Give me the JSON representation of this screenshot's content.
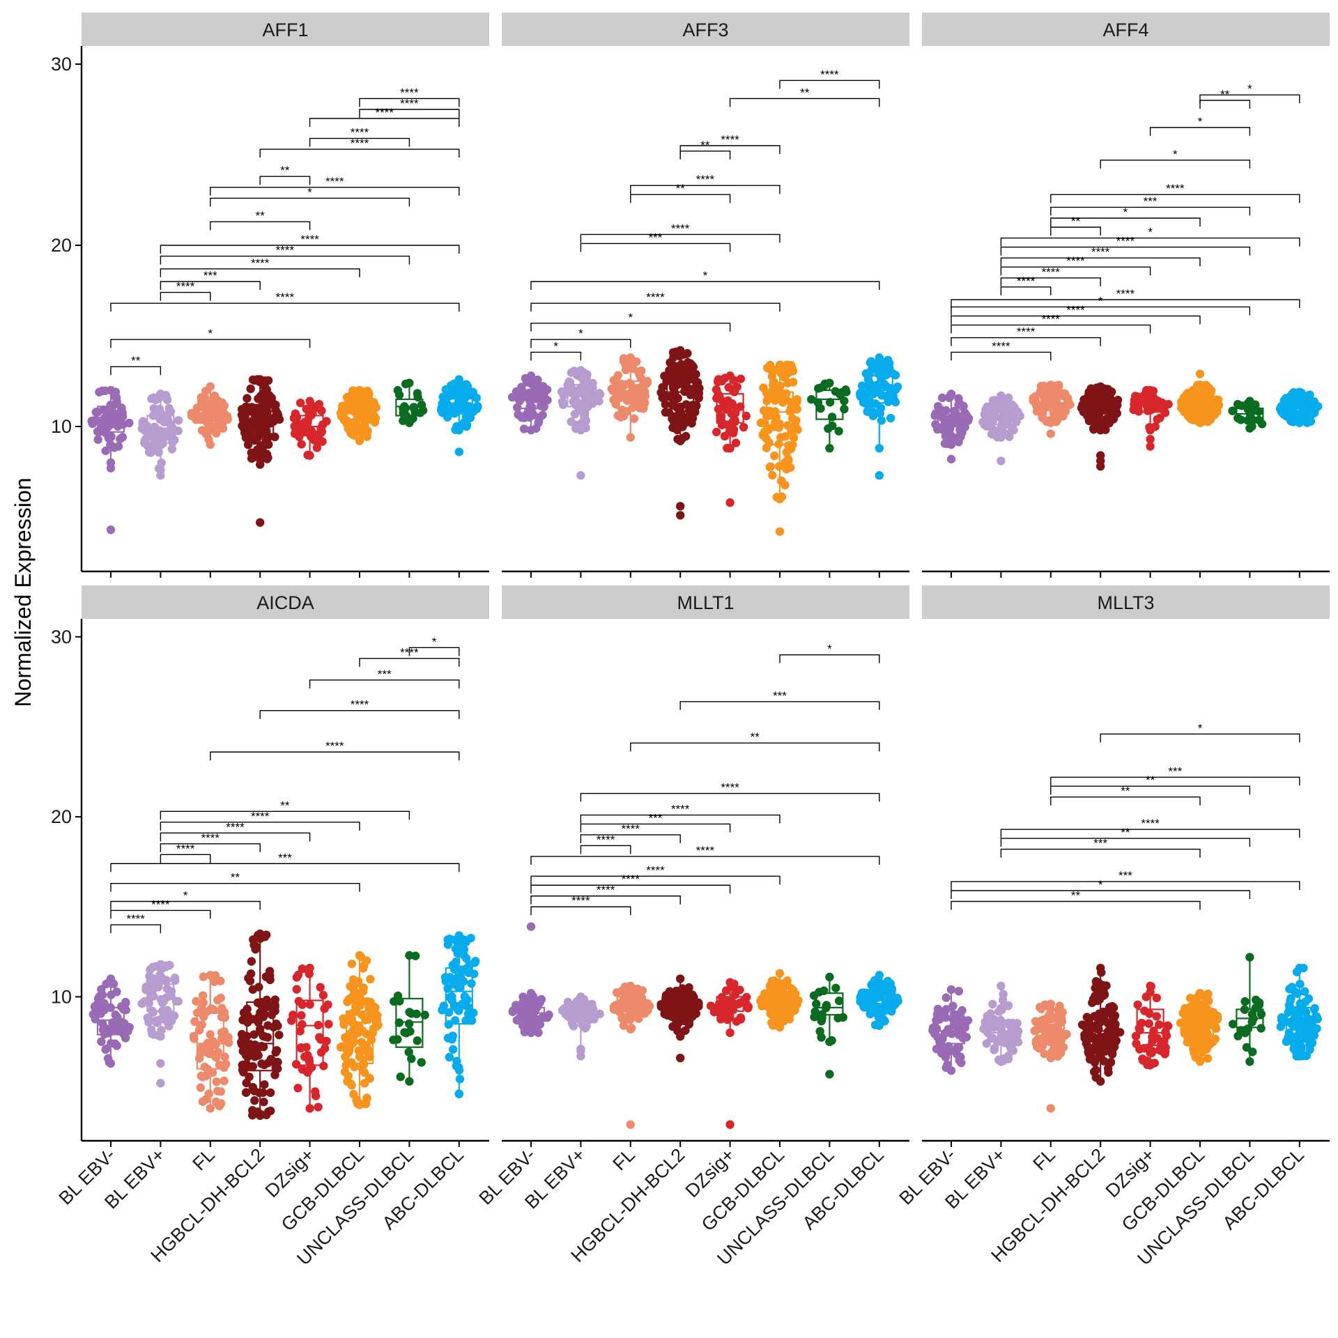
{
  "chart_data": {
    "type": "box-beeswarm",
    "ylabel": "Normalized Expression",
    "xlabel": "",
    "ylim": [
      2,
      31
    ],
    "yticks": [
      10,
      20,
      30
    ],
    "groups": [
      "BL EBV-",
      "BL EBV+",
      "FL",
      "HGBCL-DH-BCL2",
      "DZsig+",
      "GCB-DLBCL",
      "UNCLASS-DLBCL",
      "ABC-DLBCL"
    ],
    "group_colors": [
      "#9a6bb5",
      "#b69ccf",
      "#ee8a6c",
      "#7e1416",
      "#d7272d",
      "#f7941e",
      "#0b6b20",
      "#08acec"
    ],
    "group_counts": [
      60,
      70,
      70,
      120,
      45,
      110,
      20,
      80
    ],
    "panels": [
      {
        "name": "AFF1",
        "box": [
          [
            9.7,
            10.5,
            11.1,
            12.0,
            8.0
          ],
          [
            9.1,
            9.9,
            10.6,
            11.8,
            7.6
          ],
          [
            10.2,
            10.6,
            11.0,
            12.2,
            9.0
          ],
          [
            9.6,
            10.4,
            11.2,
            12.6,
            8.2
          ],
          [
            9.5,
            10.0,
            10.6,
            11.4,
            8.4
          ],
          [
            10.3,
            10.8,
            11.2,
            12.0,
            9.2
          ],
          [
            10.6,
            11.1,
            11.5,
            12.4,
            10.2
          ],
          [
            10.7,
            11.2,
            11.7,
            12.6,
            9.8
          ]
        ],
        "outliers": [
          [
            4.3,
            7.7
          ],
          [
            7.3
          ],
          [],
          [
            4.7,
            7.9
          ],
          [],
          [],
          [],
          [
            8.6
          ]
        ],
        "comparisons": [
          {
            "g1": 0,
            "g2": 1,
            "y": 13.3,
            "label": "**"
          },
          {
            "g1": 0,
            "g2": 4,
            "y": 14.8,
            "label": "*"
          },
          {
            "g1": 0,
            "g2": 7,
            "y": 16.8,
            "label": "****"
          },
          {
            "g1": 1,
            "g2": 2,
            "y": 17.4,
            "label": "****"
          },
          {
            "g1": 1,
            "g2": 3,
            "y": 18.0,
            "label": "***"
          },
          {
            "g1": 1,
            "g2": 5,
            "y": 18.7,
            "label": "****"
          },
          {
            "g1": 1,
            "g2": 6,
            "y": 19.4,
            "label": "****"
          },
          {
            "g1": 1,
            "g2": 7,
            "y": 20.0,
            "label": "****"
          },
          {
            "g1": 2,
            "g2": 4,
            "y": 21.3,
            "label": "**"
          },
          {
            "g1": 2,
            "g2": 6,
            "y": 22.6,
            "label": "*"
          },
          {
            "g1": 2,
            "g2": 7,
            "y": 23.2,
            "label": "****"
          },
          {
            "g1": 3,
            "g2": 4,
            "y": 23.8,
            "label": "**"
          },
          {
            "g1": 3,
            "g2": 7,
            "y": 25.3,
            "label": "****"
          },
          {
            "g1": 4,
            "g2": 6,
            "y": 25.9,
            "label": "****"
          },
          {
            "g1": 4,
            "g2": 7,
            "y": 27.0,
            "label": "****"
          },
          {
            "g1": 5,
            "g2": 7,
            "y": 27.5,
            "label": "****"
          },
          {
            "g1": 5,
            "g2": 7,
            "y": 28.1,
            "label": "****"
          }
        ]
      },
      {
        "name": "AFF3",
        "box": [
          [
            11.0,
            11.5,
            12.0,
            12.8,
            9.8
          ],
          [
            11.1,
            11.7,
            12.3,
            13.1,
            9.8
          ],
          [
            11.0,
            11.8,
            12.5,
            13.8,
            9.4
          ],
          [
            11.1,
            11.9,
            12.8,
            14.2,
            9.2
          ],
          [
            10.2,
            11.0,
            11.8,
            12.8,
            8.8
          ],
          [
            9.0,
            10.8,
            11.9,
            13.4,
            6.0
          ],
          [
            10.4,
            11.5,
            12.0,
            12.4,
            8.8
          ],
          [
            11.3,
            12.0,
            12.8,
            13.8,
            8.8
          ]
        ],
        "outliers": [
          [],
          [
            7.3
          ],
          [],
          [
            5.1,
            5.6
          ],
          [
            5.8
          ],
          [
            4.2
          ],
          [],
          [
            7.3
          ]
        ],
        "comparisons": [
          {
            "g1": 0,
            "g2": 1,
            "y": 14.1,
            "label": "*"
          },
          {
            "g1": 0,
            "g2": 2,
            "y": 14.8,
            "label": "*"
          },
          {
            "g1": 0,
            "g2": 4,
            "y": 15.7,
            "label": "*"
          },
          {
            "g1": 0,
            "g2": 5,
            "y": 16.8,
            "label": "****"
          },
          {
            "g1": 0,
            "g2": 7,
            "y": 18.0,
            "label": "*"
          },
          {
            "g1": 1,
            "g2": 4,
            "y": 20.1,
            "label": "***"
          },
          {
            "g1": 1,
            "g2": 5,
            "y": 20.6,
            "label": "****"
          },
          {
            "g1": 2,
            "g2": 4,
            "y": 22.8,
            "label": "**"
          },
          {
            "g1": 2,
            "g2": 5,
            "y": 23.3,
            "label": "****"
          },
          {
            "g1": 3,
            "g2": 4,
            "y": 25.2,
            "label": "**"
          },
          {
            "g1": 3,
            "g2": 5,
            "y": 25.5,
            "label": "****"
          },
          {
            "g1": 4,
            "g2": 7,
            "y": 28.1,
            "label": "**"
          },
          {
            "g1": 5,
            "g2": 7,
            "y": 29.1,
            "label": "****"
          }
        ]
      },
      {
        "name": "AFF4",
        "box": [
          [
            10.0,
            10.5,
            10.9,
            11.8,
            9.0
          ],
          [
            10.1,
            10.5,
            10.9,
            11.7,
            9.4
          ],
          [
            10.9,
            11.3,
            11.7,
            12.3,
            10.2
          ],
          [
            10.7,
            11.1,
            11.5,
            12.2,
            9.8
          ],
          [
            10.8,
            11.2,
            11.5,
            12.0,
            9.8
          ],
          [
            10.8,
            11.2,
            11.6,
            12.3,
            10.2
          ],
          [
            10.4,
            10.7,
            11.0,
            11.4,
            9.9
          ],
          [
            10.6,
            11.0,
            11.3,
            11.9,
            10.2
          ]
        ],
        "outliers": [
          [
            8.2
          ],
          [
            8.1
          ],
          [
            9.6
          ],
          [
            7.8,
            8.1,
            8.4
          ],
          [
            8.9,
            9.3
          ],
          [
            12.9
          ],
          [],
          []
        ],
        "comparisons": [
          {
            "g1": 0,
            "g2": 2,
            "y": 14.1,
            "label": "****"
          },
          {
            "g1": 0,
            "g2": 3,
            "y": 14.9,
            "label": "****"
          },
          {
            "g1": 0,
            "g2": 4,
            "y": 15.6,
            "label": "****"
          },
          {
            "g1": 0,
            "g2": 5,
            "y": 16.1,
            "label": "****"
          },
          {
            "g1": 0,
            "g2": 6,
            "y": 16.6,
            "label": "*"
          },
          {
            "g1": 0,
            "g2": 7,
            "y": 17.0,
            "label": "****"
          },
          {
            "g1": 1,
            "g2": 2,
            "y": 17.7,
            "label": "****"
          },
          {
            "g1": 1,
            "g2": 3,
            "y": 18.2,
            "label": "****"
          },
          {
            "g1": 1,
            "g2": 4,
            "y": 18.8,
            "label": "****"
          },
          {
            "g1": 1,
            "g2": 5,
            "y": 19.3,
            "label": "****"
          },
          {
            "g1": 1,
            "g2": 6,
            "y": 19.9,
            "label": "****"
          },
          {
            "g1": 1,
            "g2": 7,
            "y": 20.4,
            "label": "*"
          },
          {
            "g1": 2,
            "g2": 3,
            "y": 21.0,
            "label": "**"
          },
          {
            "g1": 2,
            "g2": 5,
            "y": 21.5,
            "label": "*"
          },
          {
            "g1": 2,
            "g2": 6,
            "y": 22.1,
            "label": "***"
          },
          {
            "g1": 2,
            "g2": 7,
            "y": 22.8,
            "label": "****"
          },
          {
            "g1": 3,
            "g2": 6,
            "y": 24.7,
            "label": "*"
          },
          {
            "g1": 4,
            "g2": 6,
            "y": 26.5,
            "label": "*"
          },
          {
            "g1": 5,
            "g2": 6,
            "y": 28.0,
            "label": "**"
          },
          {
            "g1": 5,
            "g2": 7,
            "y": 28.3,
            "label": "*"
          }
        ]
      },
      {
        "name": "AICDA",
        "box": [
          [
            7.9,
            8.7,
            9.4,
            11.0,
            6.3
          ],
          [
            9.2,
            10.0,
            10.7,
            11.8,
            7.8
          ],
          [
            6.0,
            7.4,
            9.1,
            11.2,
            3.8
          ],
          [
            5.9,
            7.4,
            9.7,
            13.5,
            3.4
          ],
          [
            6.2,
            8.4,
            9.8,
            11.6,
            3.8
          ],
          [
            6.3,
            7.9,
            9.2,
            12.3,
            4.0
          ],
          [
            7.2,
            8.6,
            9.9,
            12.3,
            5.3
          ],
          [
            8.5,
            10.3,
            11.6,
            13.4,
            4.6
          ]
        ],
        "outliers": [
          [],
          [
            5.2,
            6.3
          ],
          [],
          [],
          [],
          [],
          [],
          []
        ],
        "comparisons": [
          {
            "g1": 0,
            "g2": 1,
            "y": 14.0,
            "label": "****"
          },
          {
            "g1": 0,
            "g2": 2,
            "y": 14.8,
            "label": "****"
          },
          {
            "g1": 0,
            "g2": 3,
            "y": 15.3,
            "label": "*"
          },
          {
            "g1": 0,
            "g2": 5,
            "y": 16.3,
            "label": "**"
          },
          {
            "g1": 0,
            "g2": 7,
            "y": 17.4,
            "label": "***"
          },
          {
            "g1": 1,
            "g2": 2,
            "y": 17.9,
            "label": "****"
          },
          {
            "g1": 1,
            "g2": 3,
            "y": 18.5,
            "label": "****"
          },
          {
            "g1": 1,
            "g2": 4,
            "y": 19.1,
            "label": "****"
          },
          {
            "g1": 1,
            "g2": 5,
            "y": 19.7,
            "label": "****"
          },
          {
            "g1": 1,
            "g2": 6,
            "y": 20.3,
            "label": "**"
          },
          {
            "g1": 2,
            "g2": 7,
            "y": 23.6,
            "label": "****"
          },
          {
            "g1": 3,
            "g2": 7,
            "y": 25.9,
            "label": "****"
          },
          {
            "g1": 4,
            "g2": 7,
            "y": 27.6,
            "label": "***"
          },
          {
            "g1": 5,
            "g2": 7,
            "y": 28.8,
            "label": "****"
          },
          {
            "g1": 6,
            "g2": 7,
            "y": 29.4,
            "label": "*"
          }
        ]
      },
      {
        "name": "MLLT1",
        "box": [
          [
            8.7,
            9.1,
            9.4,
            10.2,
            8.0
          ],
          [
            8.9,
            9.2,
            9.6,
            10.0,
            7.0
          ],
          [
            9.2,
            9.6,
            10.0,
            10.6,
            8.2
          ],
          [
            9.1,
            9.5,
            9.9,
            11.0,
            7.8
          ],
          [
            9.2,
            9.6,
            10.0,
            10.8,
            8.0
          ],
          [
            9.3,
            9.7,
            10.1,
            11.3,
            8.3
          ],
          [
            9.0,
            9.4,
            10.2,
            11.1,
            7.5
          ],
          [
            9.6,
            9.9,
            10.4,
            11.2,
            8.4
          ]
        ],
        "outliers": [
          [
            13.9
          ],
          [
            6.7,
            7.1
          ],
          [
            2.9
          ],
          [
            6.6
          ],
          [
            2.9
          ],
          [],
          [
            5.7
          ],
          []
        ],
        "comparisons": [
          {
            "g1": 0,
            "g2": 2,
            "y": 15.0,
            "label": "****"
          },
          {
            "g1": 0,
            "g2": 3,
            "y": 15.6,
            "label": "****"
          },
          {
            "g1": 0,
            "g2": 4,
            "y": 16.2,
            "label": "****"
          },
          {
            "g1": 0,
            "g2": 5,
            "y": 16.7,
            "label": "****"
          },
          {
            "g1": 0,
            "g2": 7,
            "y": 17.8,
            "label": "****"
          },
          {
            "g1": 1,
            "g2": 2,
            "y": 18.4,
            "label": "****"
          },
          {
            "g1": 1,
            "g2": 3,
            "y": 19.0,
            "label": "****"
          },
          {
            "g1": 1,
            "g2": 4,
            "y": 19.6,
            "label": "***"
          },
          {
            "g1": 1,
            "g2": 5,
            "y": 20.1,
            "label": "****"
          },
          {
            "g1": 1,
            "g2": 7,
            "y": 21.3,
            "label": "****"
          },
          {
            "g1": 2,
            "g2": 7,
            "y": 24.1,
            "label": "**"
          },
          {
            "g1": 3,
            "g2": 7,
            "y": 26.4,
            "label": "***"
          },
          {
            "g1": 5,
            "g2": 7,
            "y": 29.0,
            "label": "*"
          }
        ]
      },
      {
        "name": "MLLT3",
        "box": [
          [
            7.4,
            8.1,
            8.9,
            10.4,
            5.9
          ],
          [
            7.5,
            8.0,
            8.7,
            10.6,
            6.4
          ],
          [
            7.6,
            8.2,
            8.8,
            9.6,
            6.6
          ],
          [
            7.3,
            8.1,
            8.9,
            11.6,
            5.3
          ],
          [
            7.3,
            8.0,
            9.3,
            10.6,
            6.2
          ],
          [
            7.9,
            8.5,
            9.2,
            10.2,
            6.4
          ],
          [
            8.3,
            8.8,
            9.3,
            12.2,
            6.4
          ],
          [
            7.9,
            8.7,
            9.4,
            11.6,
            6.7
          ]
        ],
        "outliers": [
          [],
          [],
          [
            3.8
          ],
          [],
          [],
          [],
          [],
          []
        ],
        "comparisons": [
          {
            "g1": 0,
            "g2": 5,
            "y": 15.3,
            "label": "**"
          },
          {
            "g1": 0,
            "g2": 6,
            "y": 15.9,
            "label": "*"
          },
          {
            "g1": 0,
            "g2": 7,
            "y": 16.4,
            "label": "***"
          },
          {
            "g1": 1,
            "g2": 5,
            "y": 18.2,
            "label": "***"
          },
          {
            "g1": 1,
            "g2": 6,
            "y": 18.8,
            "label": "**"
          },
          {
            "g1": 1,
            "g2": 7,
            "y": 19.3,
            "label": "****"
          },
          {
            "g1": 2,
            "g2": 5,
            "y": 21.1,
            "label": "**"
          },
          {
            "g1": 2,
            "g2": 6,
            "y": 21.7,
            "label": "**"
          },
          {
            "g1": 2,
            "g2": 7,
            "y": 22.2,
            "label": "***"
          },
          {
            "g1": 3,
            "g2": 7,
            "y": 24.6,
            "label": "*"
          }
        ]
      }
    ]
  }
}
